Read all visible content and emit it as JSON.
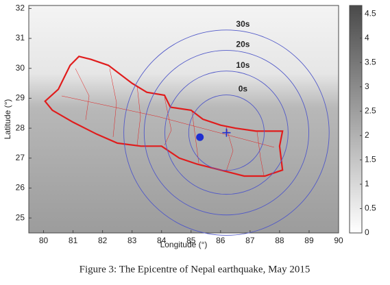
{
  "chart_data": {
    "type": "map",
    "x_label": "Longitude (°)",
    "y_label": "Latitude (°)",
    "xlim": [
      79.5,
      90
    ],
    "ylim": [
      24.5,
      32.1
    ],
    "xticks": [
      80,
      81,
      82,
      83,
      84,
      85,
      86,
      87,
      88,
      89,
      90
    ],
    "yticks": [
      25,
      26,
      27,
      28,
      29,
      30,
      31,
      32
    ],
    "epicenter": {
      "x": 85.3,
      "y": 27.7,
      "color": "#1f2fd0"
    },
    "marker": {
      "x": 86.2,
      "y": 27.85,
      "color": "#1f2fd0"
    },
    "wavefronts": {
      "center_x": 86.2,
      "center_y": 27.85,
      "radii": [
        1.28,
        2.09,
        2.79,
        3.48
      ],
      "labels": [
        "0s",
        "10s",
        "20s",
        "30s"
      ],
      "color": "#5058c8"
    },
    "boundary_color": "#e01c1c",
    "colorbar": {
      "lim": [
        0,
        4.67
      ],
      "ticks": [
        0,
        0.5,
        1,
        1.5,
        2,
        2.5,
        3,
        3.5,
        4,
        4.5
      ]
    },
    "caption": "Figure 3: The Epicentre of Nepal earthquake, May 2015"
  }
}
